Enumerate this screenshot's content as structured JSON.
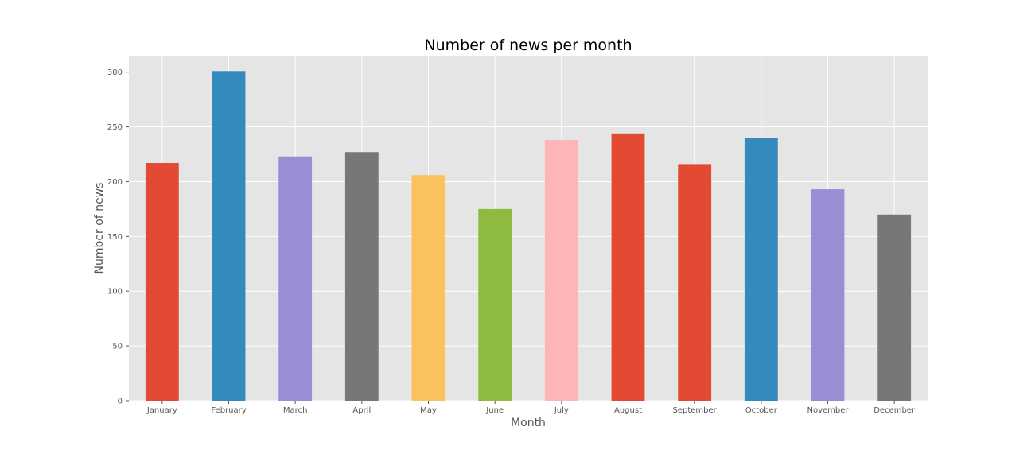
{
  "chart_data": {
    "type": "bar",
    "title": "Number of news per month",
    "xlabel": "Month",
    "ylabel": "Number of news",
    "categories": [
      "January",
      "February",
      "March",
      "April",
      "May",
      "June",
      "July",
      "August",
      "September",
      "October",
      "November",
      "December"
    ],
    "values": [
      217,
      301,
      223,
      227,
      206,
      175,
      238,
      244,
      216,
      240,
      193,
      170
    ],
    "colors": [
      "#E24A33",
      "#348ABD",
      "#988ED5",
      "#777777",
      "#FBC15E",
      "#8EBA42",
      "#FFB5B8",
      "#E24A33",
      "#E24A33",
      "#348ABD",
      "#988ED5",
      "#777777"
    ],
    "ylim": [
      0,
      315
    ],
    "yticks": [
      0,
      50,
      100,
      150,
      200,
      250,
      300
    ],
    "grid": true,
    "legend": "none"
  }
}
